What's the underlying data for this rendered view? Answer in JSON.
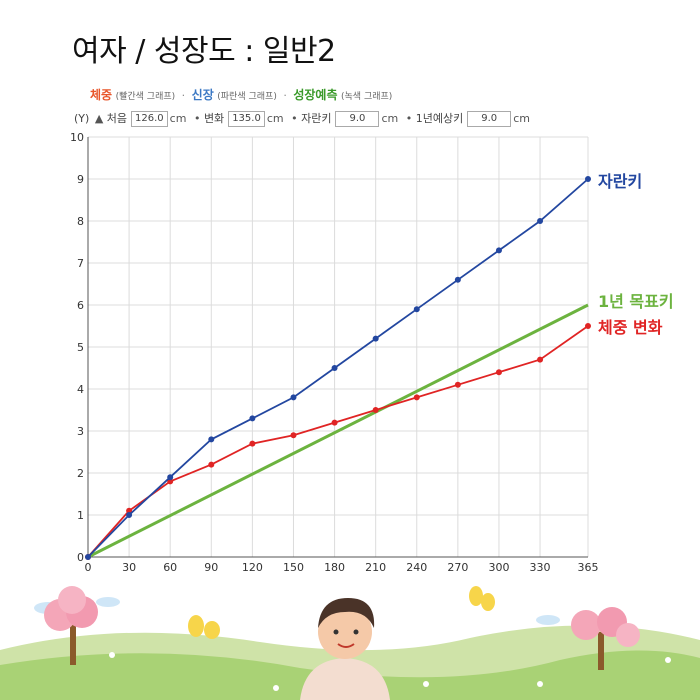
{
  "title": "여자 / 성장도 : 일반2",
  "legend": {
    "weight": {
      "label": "체중",
      "note": "(빨간색 그래프)",
      "color": "#e8552a"
    },
    "height": {
      "label": "신장",
      "note": "(파란색 그래프)",
      "color": "#3b78c4"
    },
    "predict": {
      "label": "성장예측",
      "note": "(녹색 그래프)",
      "color": "#3a9a2a"
    },
    "separator": "·"
  },
  "inputs": {
    "y_label": "(Y)",
    "start_label": "처음",
    "start_value": "126.0",
    "change_label": "변화",
    "change_value": "135.0",
    "grow_label": "자란키",
    "grow_value": "9.0",
    "expect_label": "1년예상키",
    "expect_value": "9.0",
    "unit": "cm",
    "bullet": "•"
  },
  "chart_data": {
    "type": "line",
    "x": [
      0,
      30,
      60,
      90,
      120,
      150,
      180,
      210,
      240,
      270,
      300,
      330,
      365
    ],
    "x_ticks": [
      0,
      30,
      60,
      90,
      120,
      150,
      180,
      210,
      240,
      270,
      300,
      330,
      365
    ],
    "y_ticks": [
      0,
      1,
      2,
      3,
      4,
      5,
      6,
      7,
      8,
      9,
      10
    ],
    "xlim": [
      0,
      365
    ],
    "ylim": [
      0,
      10
    ],
    "grid": true,
    "series": [
      {
        "name": "자란키",
        "color": "#2347a0",
        "values": [
          0,
          1.0,
          1.9,
          2.8,
          3.3,
          3.8,
          4.5,
          5.2,
          5.9,
          6.6,
          7.3,
          8.0,
          9.0
        ]
      },
      {
        "name": "체중 변화",
        "color": "#e02424",
        "values": [
          0,
          1.1,
          1.8,
          2.2,
          2.7,
          2.9,
          3.2,
          3.5,
          3.8,
          4.1,
          4.4,
          4.7,
          5.5
        ]
      },
      {
        "name": "1년 목표키",
        "color": "#6cb33f",
        "points": [
          [
            0,
            0
          ],
          [
            365,
            6.0
          ]
        ]
      }
    ]
  },
  "colors": {
    "height_line": "#2347a0",
    "weight_line": "#e02424",
    "target_line": "#6cb33f",
    "grid": "#dcdcdc",
    "grass": "#b8d98a",
    "grass_dark": "#8fc25a",
    "tree_pink": "#f4a6b8",
    "tree_trunk": "#8b5a2b",
    "sky_cloud": "#cfe6f7"
  }
}
